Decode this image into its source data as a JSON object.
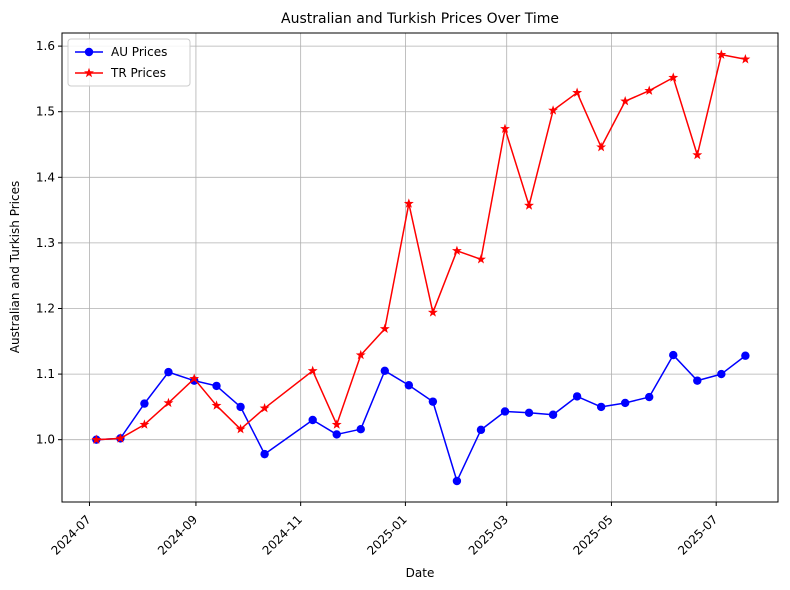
{
  "chart_data": {
    "type": "line",
    "title": "Australian and Turkish Prices Over Time",
    "xlabel": "Date",
    "ylabel": "Australian and Turkish Prices",
    "x_ticks": [
      "2024-07",
      "2024-09",
      "2024-11",
      "2025-01",
      "2025-03",
      "2025-05",
      "2025-07"
    ],
    "y_ticks": [
      "1.0",
      "1.1",
      "1.2",
      "1.3",
      "1.4",
      "1.5",
      "1.6"
    ],
    "xlim": [
      "2024-06-15",
      "2025-08-06"
    ],
    "ylim": [
      0.905,
      1.62
    ],
    "grid": true,
    "legend_position": "upper-left",
    "series": [
      {
        "name": "AU Prices",
        "color": "#0000ff",
        "marker": "circle",
        "points": [
          {
            "x": "2024-07-05",
            "y": 1.0
          },
          {
            "x": "2024-07-19",
            "y": 1.002
          },
          {
            "x": "2024-08-02",
            "y": 1.055
          },
          {
            "x": "2024-08-16",
            "y": 1.103
          },
          {
            "x": "2024-08-31",
            "y": 1.09
          },
          {
            "x": "2024-09-13",
            "y": 1.082
          },
          {
            "x": "2024-09-27",
            "y": 1.05
          },
          {
            "x": "2024-10-11",
            "y": 0.978
          },
          {
            "x": "2024-11-08",
            "y": 1.03
          },
          {
            "x": "2024-11-22",
            "y": 1.008
          },
          {
            "x": "2024-12-06",
            "y": 1.016
          },
          {
            "x": "2024-12-20",
            "y": 1.105
          },
          {
            "x": "2025-01-03",
            "y": 1.083
          },
          {
            "x": "2025-01-17",
            "y": 1.058
          },
          {
            "x": "2025-01-31",
            "y": 0.937
          },
          {
            "x": "2025-02-14",
            "y": 1.015
          },
          {
            "x": "2025-02-28",
            "y": 1.043
          },
          {
            "x": "2025-03-14",
            "y": 1.041
          },
          {
            "x": "2025-03-28",
            "y": 1.038
          },
          {
            "x": "2025-04-11",
            "y": 1.066
          },
          {
            "x": "2025-04-25",
            "y": 1.05
          },
          {
            "x": "2025-05-09",
            "y": 1.056
          },
          {
            "x": "2025-05-23",
            "y": 1.065
          },
          {
            "x": "2025-06-06",
            "y": 1.129
          },
          {
            "x": "2025-06-20",
            "y": 1.09
          },
          {
            "x": "2025-07-04",
            "y": 1.1
          },
          {
            "x": "2025-07-18",
            "y": 1.128
          }
        ]
      },
      {
        "name": "TR Prices",
        "color": "#ff0000",
        "marker": "star",
        "points": [
          {
            "x": "2024-07-05",
            "y": 1.0
          },
          {
            "x": "2024-07-19",
            "y": 1.002
          },
          {
            "x": "2024-08-02",
            "y": 1.023
          },
          {
            "x": "2024-08-16",
            "y": 1.056
          },
          {
            "x": "2024-08-31",
            "y": 1.093
          },
          {
            "x": "2024-09-13",
            "y": 1.052
          },
          {
            "x": "2024-09-27",
            "y": 1.016
          },
          {
            "x": "2024-10-11",
            "y": 1.048
          },
          {
            "x": "2024-11-08",
            "y": 1.105
          },
          {
            "x": "2024-11-22",
            "y": 1.023
          },
          {
            "x": "2024-12-06",
            "y": 1.129
          },
          {
            "x": "2024-12-20",
            "y": 1.169
          },
          {
            "x": "2025-01-03",
            "y": 1.36
          },
          {
            "x": "2025-01-17",
            "y": 1.194
          },
          {
            "x": "2025-01-31",
            "y": 1.288
          },
          {
            "x": "2025-02-14",
            "y": 1.275
          },
          {
            "x": "2025-02-28",
            "y": 1.474
          },
          {
            "x": "2025-03-14",
            "y": 1.357
          },
          {
            "x": "2025-03-28",
            "y": 1.502
          },
          {
            "x": "2025-04-11",
            "y": 1.529
          },
          {
            "x": "2025-04-25",
            "y": 1.446
          },
          {
            "x": "2025-05-09",
            "y": 1.516
          },
          {
            "x": "2025-05-23",
            "y": 1.532
          },
          {
            "x": "2025-06-06",
            "y": 1.552
          },
          {
            "x": "2025-06-20",
            "y": 1.434
          },
          {
            "x": "2025-07-04",
            "y": 1.587
          },
          {
            "x": "2025-07-18",
            "y": 1.58
          }
        ]
      }
    ]
  }
}
